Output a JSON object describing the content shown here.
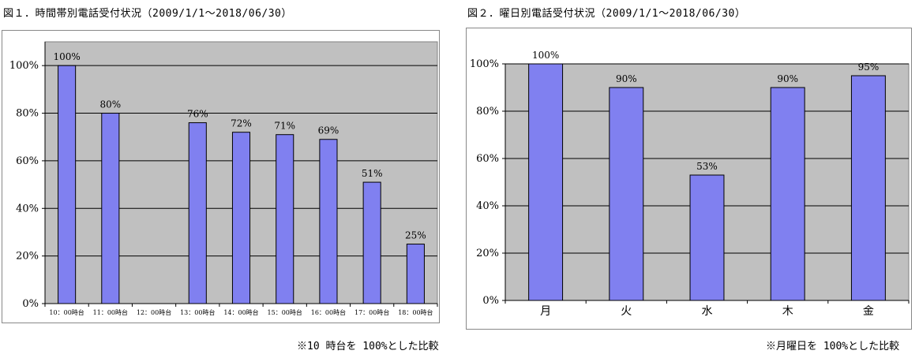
{
  "chart_data": [
    {
      "type": "bar",
      "title": "図１．時間帯別電話受付状況（2009/1/1～2018/06/30）",
      "categories": [
        "10：00時台",
        "11：00時台",
        "12：00時台",
        "13：00時台",
        "14：00時台",
        "15：00時台",
        "16：00時台",
        "17：00時台",
        "18：00時台"
      ],
      "values": [
        100,
        80,
        null,
        76,
        72,
        71,
        69,
        51,
        25
      ],
      "data_labels": [
        "100%",
        "80%",
        "",
        "76%",
        "72%",
        "71%",
        "69%",
        "51%",
        "25%"
      ],
      "ylim": [
        0,
        110
      ],
      "yticks": [
        0,
        20,
        40,
        60,
        80,
        100
      ],
      "ytick_labels": [
        "0%",
        "20%",
        "40%",
        "60%",
        "80%",
        "100%"
      ],
      "grid": true,
      "plot_bg": "#c0c0c0",
      "bar_color": "#8080f0",
      "note": "※10 時台を 100%とした比較"
    },
    {
      "type": "bar",
      "title": "図２．曜日別電話受付状況（2009/1/1～2018/06/30）",
      "categories": [
        "月",
        "火",
        "水",
        "木",
        "金"
      ],
      "values": [
        100,
        90,
        53,
        90,
        95
      ],
      "data_labels": [
        "100%",
        "90%",
        "53%",
        "90%",
        "95%"
      ],
      "ylim": [
        0,
        100
      ],
      "yticks": [
        0,
        20,
        40,
        60,
        80,
        100
      ],
      "ytick_labels": [
        "0%",
        "20%",
        "40%",
        "60%",
        "80%",
        "100%"
      ],
      "grid": true,
      "plot_bg": "#c0c0c0",
      "bar_color": "#8080f0",
      "note": "※月曜日を 100%とした比較"
    }
  ]
}
